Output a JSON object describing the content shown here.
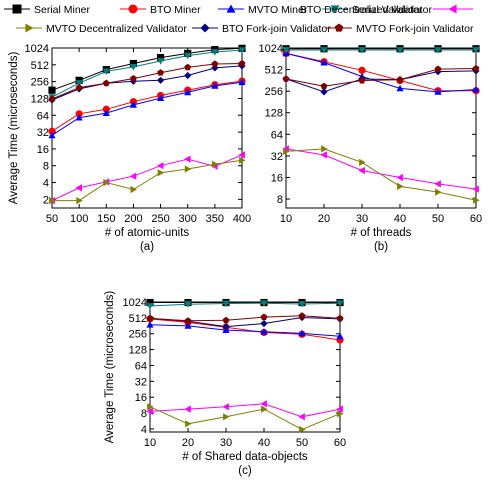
{
  "legend": {
    "placement": "top",
    "entries": [
      {
        "name": "Serial Miner",
        "color": "#000000",
        "marker": "square"
      },
      {
        "name": "BTO Miner",
        "color": "#ff0000",
        "marker": "circle"
      },
      {
        "name": "MVTO Miner",
        "color": "#0000ff",
        "marker": "triangle-up"
      },
      {
        "name": "Serial Validator",
        "color": "#008080",
        "marker": "triangle-down"
      },
      {
        "name": "BTO Decentralized Validator",
        "color": "#ff00ff",
        "marker": "triangle-left"
      },
      {
        "name": "MVTO Decentralized Validator",
        "color": "#808000",
        "marker": "triangle-right"
      },
      {
        "name": "BTO Fork-join Validator",
        "color": "#000080",
        "marker": "diamond"
      },
      {
        "name": "MVTO Fork-join Validator",
        "color": "#800000",
        "marker": "pentagon"
      }
    ]
  },
  "chart_data": [
    {
      "type": "line",
      "panel_label": "(a)",
      "xlabel": "# of atomic-units",
      "ylabel": "Average Time (microseconds)",
      "y_scale": "log2",
      "x": [
        50,
        100,
        150,
        200,
        250,
        300,
        350,
        400
      ],
      "xlim": [
        50,
        400
      ],
      "ylim": [
        1.4,
        1024
      ],
      "x_ticks": [
        "50",
        "100",
        "150",
        "200",
        "250",
        "300",
        "350",
        "400"
      ],
      "y_ticks": [
        2,
        4,
        8,
        16,
        32,
        64,
        128,
        256,
        512,
        1024
      ],
      "series": [
        {
          "name": "Serial Miner",
          "values": [
            180,
            270,
            420,
            540,
            690,
            820,
            960,
            1010
          ]
        },
        {
          "name": "BTO Miner",
          "values": [
            33,
            68,
            82,
            112,
            145,
            180,
            225,
            262
          ]
        },
        {
          "name": "MVTO Miner",
          "values": [
            28,
            58,
            70,
            98,
            130,
            165,
            215,
            250
          ]
        },
        {
          "name": "Serial Validator",
          "values": [
            135,
            240,
            390,
            470,
            600,
            750,
            870,
            940
          ]
        },
        {
          "name": "BTO Decentralized Validator",
          "values": [
            1.9,
            3.2,
            4.1,
            5.2,
            8.0,
            10.5,
            7.8,
            12.5
          ]
        },
        {
          "name": "MVTO Decentralized Validator",
          "values": [
            1.9,
            1.9,
            4.0,
            3.0,
            6.0,
            7.0,
            8.5,
            10.0
          ]
        },
        {
          "name": "BTO Fork-join Validator",
          "values": [
            120,
            190,
            240,
            260,
            270,
            330,
            450,
            490
          ]
        },
        {
          "name": "MVTO Fork-join Validator",
          "values": [
            125,
            200,
            240,
            290,
            370,
            460,
            530,
            540
          ]
        }
      ]
    },
    {
      "type": "line",
      "panel_label": "(b)",
      "xlabel": "# of threads",
      "ylabel": "",
      "y_scale": "log2",
      "x": [
        10,
        20,
        30,
        40,
        50,
        60
      ],
      "xlim": [
        10,
        60
      ],
      "ylim": [
        6,
        1024
      ],
      "x_ticks": [
        "10",
        "20",
        "30",
        "40",
        "50",
        "60"
      ],
      "y_ticks": [
        8,
        16,
        32,
        64,
        128,
        256,
        512,
        1024
      ],
      "series": [
        {
          "name": "Serial Miner",
          "values": [
            1000,
            1000,
            1000,
            1000,
            1000,
            1000
          ]
        },
        {
          "name": "BTO Miner",
          "values": [
            860,
            660,
            500,
            360,
            260,
            260
          ]
        },
        {
          "name": "MVTO Miner",
          "values": [
            860,
            640,
            410,
            280,
            250,
            270
          ]
        },
        {
          "name": "Serial Validator",
          "values": [
            960,
            960,
            960,
            960,
            960,
            960
          ]
        },
        {
          "name": "BTO Decentralized Validator",
          "values": [
            40,
            33,
            20,
            16,
            13,
            11
          ]
        },
        {
          "name": "MVTO Decentralized Validator",
          "values": [
            37,
            40,
            26,
            12,
            10,
            7.7
          ]
        },
        {
          "name": "BTO Fork-join Validator",
          "values": [
            380,
            250,
            380,
            370,
            480,
            490
          ]
        },
        {
          "name": "MVTO Fork-join Validator",
          "values": [
            380,
            300,
            360,
            370,
            520,
            530
          ]
        }
      ]
    },
    {
      "type": "line",
      "panel_label": "(c)",
      "xlabel": "# of Shared data-objects",
      "ylabel": "Average Time (microseconds)",
      "y_scale": "log2",
      "x": [
        10,
        20,
        30,
        40,
        50,
        60
      ],
      "xlim": [
        10,
        60
      ],
      "ylim": [
        3.5,
        1024
      ],
      "x_ticks": [
        "10",
        "20",
        "30",
        "40",
        "50",
        "60"
      ],
      "y_ticks": [
        4,
        8,
        16,
        32,
        64,
        128,
        256,
        512,
        1024
      ],
      "series": [
        {
          "name": "Serial Miner",
          "values": [
            1000,
            1000,
            1000,
            1000,
            1000,
            1000
          ]
        },
        {
          "name": "BTO Miner",
          "values": [
            490,
            420,
            340,
            270,
            250,
            195
          ]
        },
        {
          "name": "MVTO Miner",
          "values": [
            380,
            360,
            300,
            280,
            260,
            230
          ]
        },
        {
          "name": "Serial Validator",
          "values": [
            860,
            930,
            960,
            970,
            940,
            970
          ]
        },
        {
          "name": "BTO Decentralized Validator",
          "values": [
            8.6,
            9.5,
            10.5,
            12,
            6.8,
            9.5
          ]
        },
        {
          "name": "MVTO Decentralized Validator",
          "values": [
            10.5,
            5.0,
            6.8,
            9.5,
            3.9,
            7.8
          ]
        },
        {
          "name": "BTO Fork-join Validator",
          "values": [
            500,
            440,
            350,
            400,
            520,
            490
          ]
        },
        {
          "name": "MVTO Fork-join Validator",
          "values": [
            500,
            450,
            460,
            530,
            560,
            500
          ]
        }
      ]
    }
  ]
}
